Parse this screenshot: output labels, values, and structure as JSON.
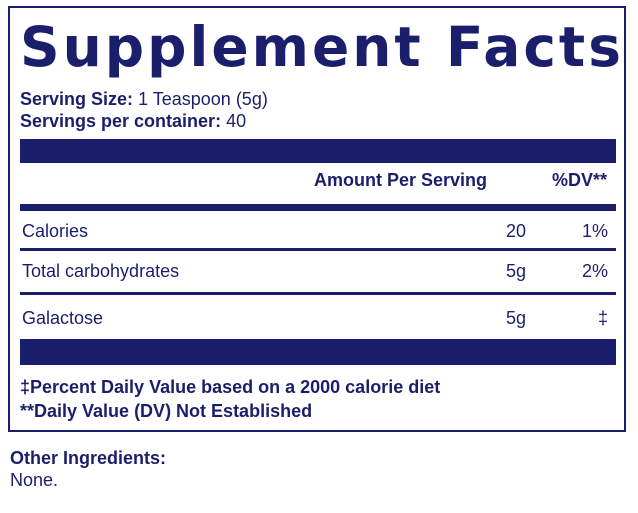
{
  "title": "Supplement Facts",
  "serving_size": {
    "label": "Serving Size:",
    "value": "1 Teaspoon (5g)"
  },
  "servings_per_container": {
    "label": "Servings per container:",
    "value": "40"
  },
  "header": {
    "amount": "Amount Per Serving",
    "dv": "%DV**"
  },
  "rows": [
    {
      "name": "Calories",
      "amount": "20",
      "dv": "1%"
    },
    {
      "name": "Total carbohydrates",
      "amount": "5g",
      "dv": "2%"
    },
    {
      "name": "Galactose",
      "amount": "5g",
      "dv": "‡"
    }
  ],
  "footnotes": [
    "‡Percent Daily Value based on a 2000 calorie diet",
    "**Daily Value (DV) Not Established"
  ],
  "other_ingredients": {
    "label": "Other Ingredients:",
    "value": "None."
  },
  "colors": {
    "navy": "#1b1f6b",
    "background": "#ffffff"
  }
}
